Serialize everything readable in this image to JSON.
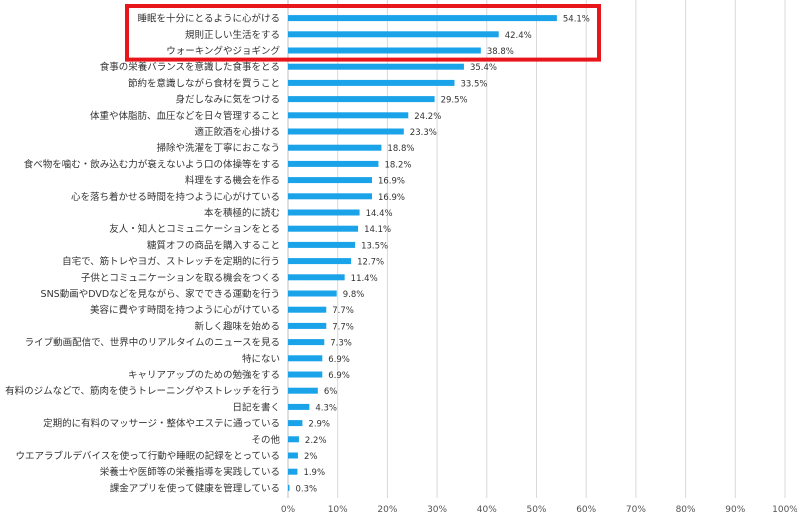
{
  "chart_data": {
    "type": "bar",
    "orientation": "horizontal",
    "categories": [
      "睡眠を十分にとるように心がける",
      "規則正しい生活をする",
      "ウォーキングやジョギング",
      "食事の栄養バランスを意識した食事をとる",
      "節約を意識しながら食材を買うこと",
      "身だしなみに気をつける",
      "体重や体脂肪、血圧などを日々管理すること",
      "適正飲酒を心掛ける",
      "掃除や洗濯を丁寧におこなう",
      "食べ物を噛む・飲み込む力が衰えないよう口の体操等をする",
      "料理をする機会を作る",
      "心を落ち着かせる時間を持つように心がけている",
      "本を積極的に読む",
      "友人・知人とコミュニケーションをとる",
      "糖質オフの商品を購入すること",
      "自宅で、筋トレやヨガ、ストレッチを定期的に行う",
      "子供とコミュニケーションを取る機会をつくる",
      "SNS動画やDVDなどを見ながら、家でできる運動を行う",
      "美容に費やす時間を持つように心がけている",
      "新しく趣味を始める",
      "ライブ動画配信で、世界中のリアルタイムのニュースを見る",
      "特にない",
      "キャリアアップのための勉強をする",
      "有料のジムなどで、筋肉を使うトレーニングやストレッチを行う",
      "日記を書く",
      "定期的に有料のマッサージ・整体やエステに通っている",
      "その他",
      "ウエアラブルデバイスを使って行動や睡眠の記録をとっている",
      "栄養士や医師等の栄養指導を実践している",
      "課金アプリを使って健康を管理している"
    ],
    "values": [
      54.1,
      42.4,
      38.8,
      35.4,
      33.5,
      29.5,
      24.2,
      23.3,
      18.8,
      18.2,
      16.9,
      16.9,
      14.4,
      14.1,
      13.5,
      12.7,
      11.4,
      9.8,
      7.7,
      7.7,
      7.3,
      6.9,
      6.9,
      6,
      4.3,
      2.9,
      2.2,
      2,
      1.9,
      0.3
    ],
    "value_labels": [
      "54.1%",
      "42.4%",
      "38.8%",
      "35.4%",
      "33.5%",
      "29.5%",
      "24.2%",
      "23.3%",
      "18.8%",
      "18.2%",
      "16.9%",
      "16.9%",
      "14.4%",
      "14.1%",
      "13.5%",
      "12.7%",
      "11.4%",
      "9.8%",
      "7.7%",
      "7.7%",
      "7.3%",
      "6.9%",
      "6.9%",
      "6%",
      "4.3%",
      "2.9%",
      "2.2%",
      "2%",
      "1.9%",
      "0.3%"
    ],
    "xlim": [
      0,
      100
    ],
    "x_ticks": [
      "0%",
      "10%",
      "20%",
      "30%",
      "40%",
      "50%",
      "60%",
      "70%",
      "80%",
      "90%",
      "100%"
    ],
    "grid": true,
    "legend": "none",
    "title": "",
    "xlabel": "",
    "ylabel": "",
    "colors": {
      "bar": "#1aa3e8",
      "highlight_box": "#e8151b",
      "grid": "#d9d9d9"
    },
    "highlight": {
      "first_index": 0,
      "last_index": 2
    }
  }
}
